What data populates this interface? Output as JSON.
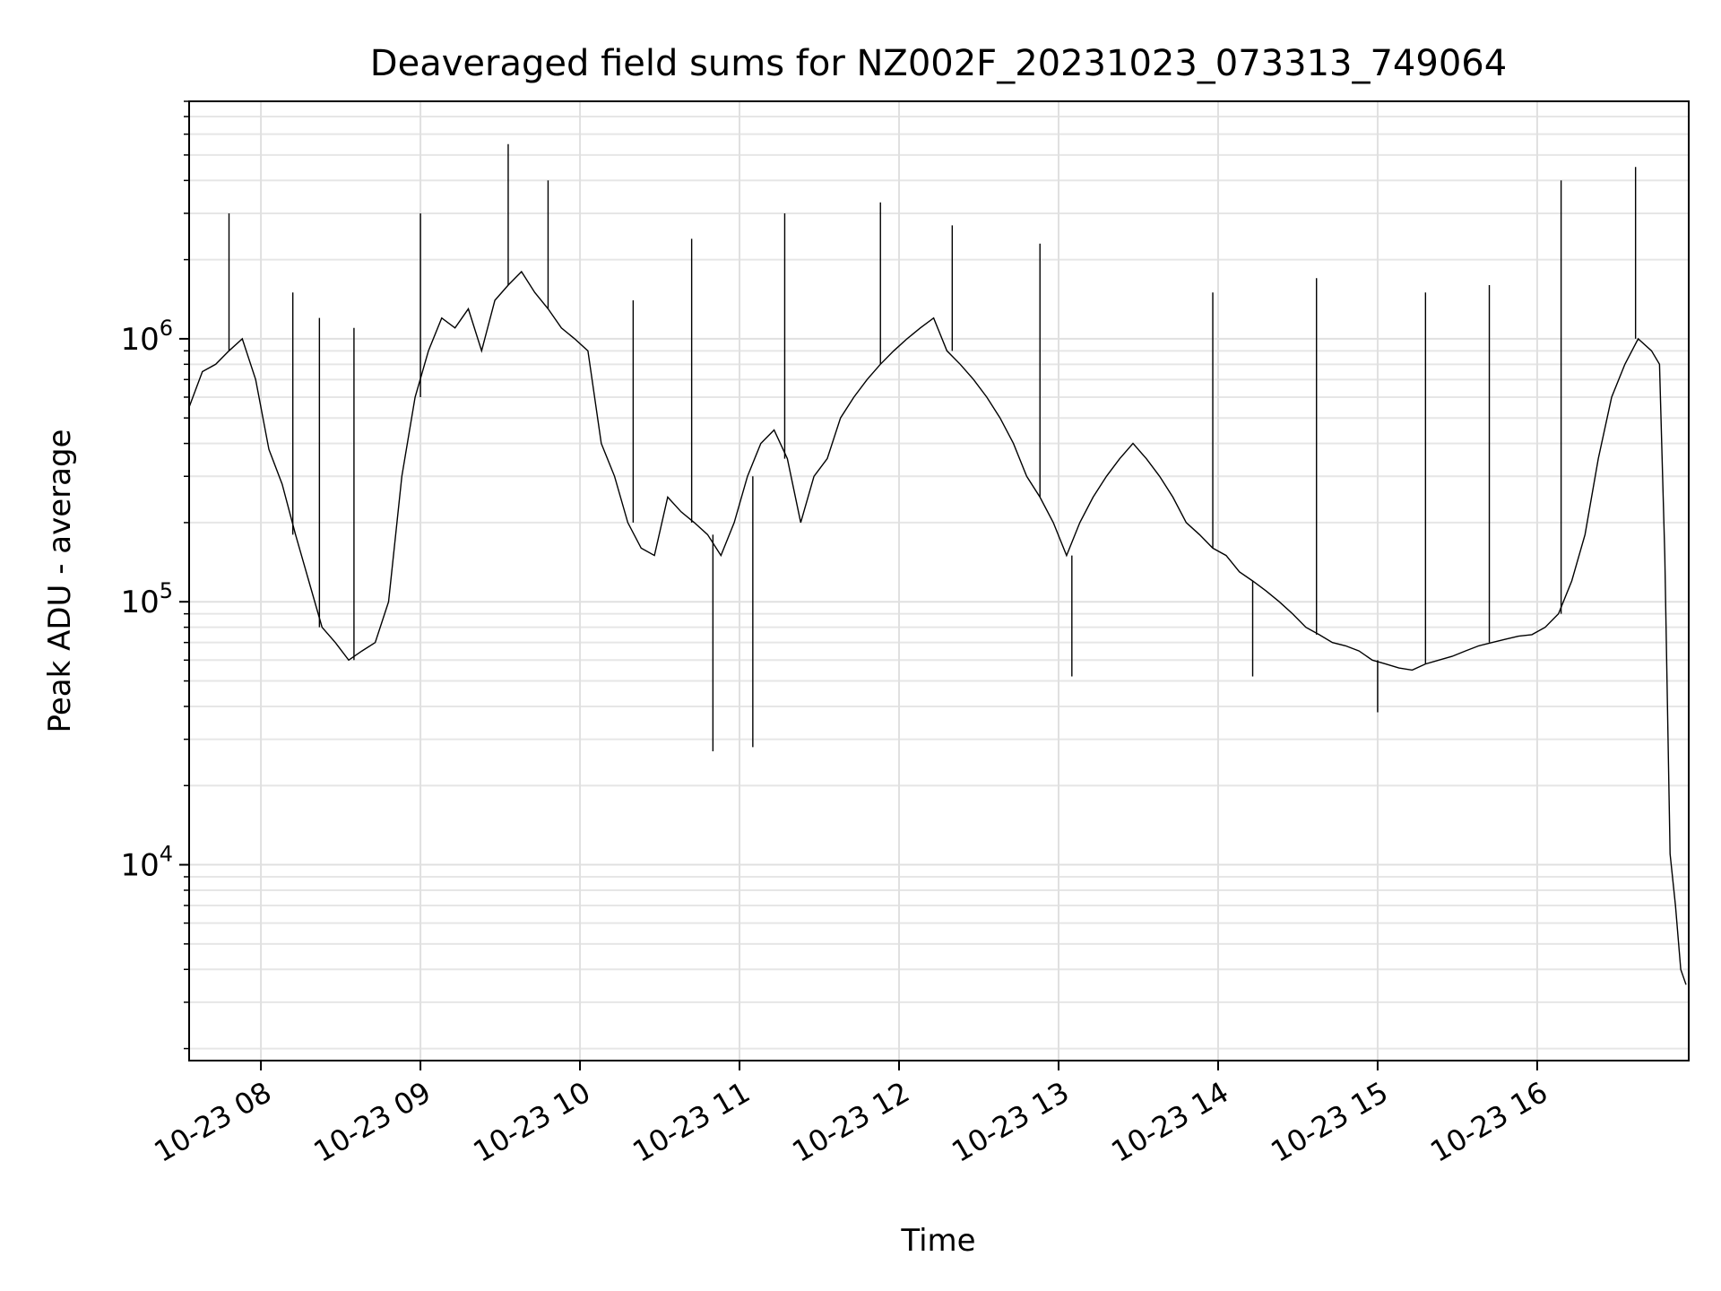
{
  "chart_data": {
    "type": "line",
    "title": "Deaveraged field sums for NZ002F_20231023_073313_749064",
    "xlabel": "Time",
    "ylabel": "Peak ADU - average",
    "yscale": "log",
    "ylim": [
      1800,
      8000000
    ],
    "xlim": [
      "2023-10-23 07:33",
      "2023-10-23 16:57"
    ],
    "grid": true,
    "line_color": "#000000",
    "x_ticks": [
      {
        "t": "2023-10-23 08:00",
        "label": "10-23 08"
      },
      {
        "t": "2023-10-23 09:00",
        "label": "10-23 09"
      },
      {
        "t": "2023-10-23 10:00",
        "label": "10-23 10"
      },
      {
        "t": "2023-10-23 11:00",
        "label": "10-23 11"
      },
      {
        "t": "2023-10-23 12:00",
        "label": "10-23 12"
      },
      {
        "t": "2023-10-23 13:00",
        "label": "10-23 13"
      },
      {
        "t": "2023-10-23 14:00",
        "label": "10-23 14"
      },
      {
        "t": "2023-10-23 15:00",
        "label": "10-23 15"
      },
      {
        "t": "2023-10-23 16:00",
        "label": "10-23 16"
      }
    ],
    "y_ticks": [
      {
        "value": 10000,
        "base": "10",
        "exp": "4"
      },
      {
        "value": 100000,
        "base": "10",
        "exp": "5"
      },
      {
        "value": 1000000,
        "base": "10",
        "exp": "6"
      }
    ],
    "series": [
      {
        "x": [
          "2023-10-23 07:33",
          "2023-10-23 07:38",
          "2023-10-23 07:43",
          "2023-10-23 07:48",
          "2023-10-23 07:53",
          "2023-10-23 07:58",
          "2023-10-23 08:03",
          "2023-10-23 08:08",
          "2023-10-23 08:13",
          "2023-10-23 08:18",
          "2023-10-23 08:23",
          "2023-10-23 08:28",
          "2023-10-23 08:33",
          "2023-10-23 08:38",
          "2023-10-23 08:43",
          "2023-10-23 08:48",
          "2023-10-23 08:53",
          "2023-10-23 08:58",
          "2023-10-23 09:03",
          "2023-10-23 09:08",
          "2023-10-23 09:13",
          "2023-10-23 09:18",
          "2023-10-23 09:23",
          "2023-10-23 09:28",
          "2023-10-23 09:33",
          "2023-10-23 09:38",
          "2023-10-23 09:43",
          "2023-10-23 09:48",
          "2023-10-23 09:53",
          "2023-10-23 09:58",
          "2023-10-23 10:03",
          "2023-10-23 10:08",
          "2023-10-23 10:13",
          "2023-10-23 10:18",
          "2023-10-23 10:23",
          "2023-10-23 10:28",
          "2023-10-23 10:33",
          "2023-10-23 10:38",
          "2023-10-23 10:43",
          "2023-10-23 10:48",
          "2023-10-23 10:53",
          "2023-10-23 10:58",
          "2023-10-23 11:03",
          "2023-10-23 11:08",
          "2023-10-23 11:13",
          "2023-10-23 11:18",
          "2023-10-23 11:23",
          "2023-10-23 11:28",
          "2023-10-23 11:33",
          "2023-10-23 11:38",
          "2023-10-23 11:43",
          "2023-10-23 11:48",
          "2023-10-23 11:53",
          "2023-10-23 11:58",
          "2023-10-23 12:03",
          "2023-10-23 12:08",
          "2023-10-23 12:13",
          "2023-10-23 12:18",
          "2023-10-23 12:23",
          "2023-10-23 12:28",
          "2023-10-23 12:33",
          "2023-10-23 12:38",
          "2023-10-23 12:43",
          "2023-10-23 12:48",
          "2023-10-23 12:53",
          "2023-10-23 12:58",
          "2023-10-23 13:03",
          "2023-10-23 13:08",
          "2023-10-23 13:13",
          "2023-10-23 13:18",
          "2023-10-23 13:23",
          "2023-10-23 13:28",
          "2023-10-23 13:33",
          "2023-10-23 13:38",
          "2023-10-23 13:43",
          "2023-10-23 13:48",
          "2023-10-23 13:53",
          "2023-10-23 13:58",
          "2023-10-23 14:03",
          "2023-10-23 14:08",
          "2023-10-23 14:13",
          "2023-10-23 14:18",
          "2023-10-23 14:23",
          "2023-10-23 14:28",
          "2023-10-23 14:33",
          "2023-10-23 14:38",
          "2023-10-23 14:43",
          "2023-10-23 14:48",
          "2023-10-23 14:53",
          "2023-10-23 14:58",
          "2023-10-23 15:03",
          "2023-10-23 15:08",
          "2023-10-23 15:13",
          "2023-10-23 15:18",
          "2023-10-23 15:23",
          "2023-10-23 15:28",
          "2023-10-23 15:33",
          "2023-10-23 15:38",
          "2023-10-23 15:43",
          "2023-10-23 15:48",
          "2023-10-23 15:53",
          "2023-10-23 15:58",
          "2023-10-23 16:03",
          "2023-10-23 16:08",
          "2023-10-23 16:13",
          "2023-10-23 16:18",
          "2023-10-23 16:23",
          "2023-10-23 16:28",
          "2023-10-23 16:33",
          "2023-10-23 16:38",
          "2023-10-23 16:43",
          "2023-10-23 16:46",
          "2023-10-23 16:48",
          "2023-10-23 16:50",
          "2023-10-23 16:52",
          "2023-10-23 16:54",
          "2023-10-23 16:56"
        ],
        "y": [
          550000,
          750000,
          800000,
          900000,
          1000000,
          700000,
          380000,
          280000,
          180000,
          120000,
          80000,
          70000,
          60000,
          65000,
          70000,
          100000,
          300000,
          600000,
          900000,
          1200000,
          1100000,
          1300000,
          900000,
          1400000,
          1600000,
          1800000,
          1500000,
          1300000,
          1100000,
          1000000,
          900000,
          400000,
          300000,
          200000,
          160000,
          150000,
          250000,
          220000,
          200000,
          180000,
          150000,
          200000,
          300000,
          400000,
          450000,
          350000,
          200000,
          300000,
          350000,
          500000,
          600000,
          700000,
          800000,
          900000,
          1000000,
          1100000,
          1200000,
          900000,
          800000,
          700000,
          600000,
          500000,
          400000,
          300000,
          250000,
          200000,
          150000,
          200000,
          250000,
          300000,
          350000,
          400000,
          350000,
          300000,
          250000,
          200000,
          180000,
          160000,
          150000,
          130000,
          120000,
          110000,
          100000,
          90000,
          80000,
          75000,
          70000,
          68000,
          65000,
          60000,
          58000,
          56000,
          55000,
          58000,
          60000,
          62000,
          65000,
          68000,
          70000,
          72000,
          74000,
          75000,
          80000,
          90000,
          120000,
          180000,
          350000,
          600000,
          800000,
          1000000,
          900000,
          800000,
          150000,
          11000,
          7000,
          4000,
          3500
        ]
      }
    ],
    "spikes": [
      {
        "x": "2023-10-23 07:48",
        "y": 3000000
      },
      {
        "x": "2023-10-23 08:12",
        "y": 1500000
      },
      {
        "x": "2023-10-23 08:22",
        "y": 1200000
      },
      {
        "x": "2023-10-23 08:35",
        "y": 1100000
      },
      {
        "x": "2023-10-23 09:00",
        "y": 3000000
      },
      {
        "x": "2023-10-23 09:33",
        "y": 5500000
      },
      {
        "x": "2023-10-23 09:48",
        "y": 4000000
      },
      {
        "x": "2023-10-23 10:20",
        "y": 1400000
      },
      {
        "x": "2023-10-23 10:42",
        "y": 2400000
      },
      {
        "x": "2023-10-23 10:50",
        "y": 27000
      },
      {
        "x": "2023-10-23 11:05",
        "y": 28000
      },
      {
        "x": "2023-10-23 11:17",
        "y": 3000000
      },
      {
        "x": "2023-10-23 11:53",
        "y": 3300000
      },
      {
        "x": "2023-10-23 12:20",
        "y": 2700000
      },
      {
        "x": "2023-10-23 12:53",
        "y": 2300000
      },
      {
        "x": "2023-10-23 13:05",
        "y": 52000
      },
      {
        "x": "2023-10-23 13:58",
        "y": 1500000
      },
      {
        "x": "2023-10-23 14:13",
        "y": 52000
      },
      {
        "x": "2023-10-23 14:37",
        "y": 1700000
      },
      {
        "x": "2023-10-23 15:00",
        "y": 38000
      },
      {
        "x": "2023-10-23 15:18",
        "y": 1500000
      },
      {
        "x": "2023-10-23 15:42",
        "y": 1600000
      },
      {
        "x": "2023-10-23 16:09",
        "y": 4000000
      },
      {
        "x": "2023-10-23 16:37",
        "y": 4500000
      }
    ]
  }
}
